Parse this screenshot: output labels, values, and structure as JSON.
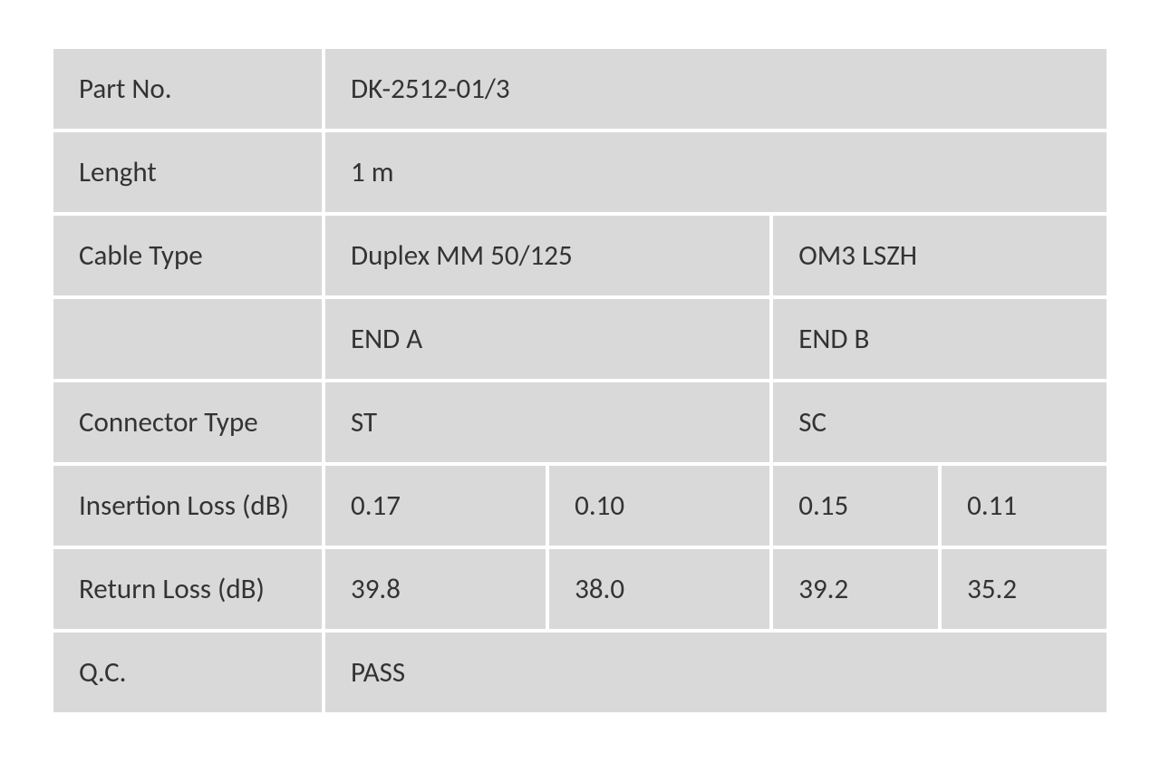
{
  "table": {
    "background_color": "#d9d9d9",
    "text_color": "#333333",
    "font_size": 31,
    "cell_spacing": 4,
    "rows": {
      "part_no": {
        "label": "Part No.",
        "value": "DK-2512-01/3"
      },
      "length": {
        "label": "Lenght",
        "value": "1 m"
      },
      "cable_type": {
        "label": "Cable Type",
        "value_a": "Duplex MM 50/125",
        "value_b": "OM3 LSZH"
      },
      "ends": {
        "label": "",
        "end_a": "END A",
        "end_b": "END B"
      },
      "connector_type": {
        "label": "Connector Type",
        "value_a": "ST",
        "value_b": "SC"
      },
      "insertion_loss": {
        "label": "Insertion Loss (dB)",
        "v1": "0.17",
        "v2": "0.10",
        "v3": "0.15",
        "v4": "0.11"
      },
      "return_loss": {
        "label": "Return Loss (dB)",
        "v1": "39.8",
        "v2": "38.0",
        "v3": "39.2",
        "v4": "35.2"
      },
      "qc": {
        "label": "Q.C.",
        "value": "PASS"
      }
    }
  }
}
